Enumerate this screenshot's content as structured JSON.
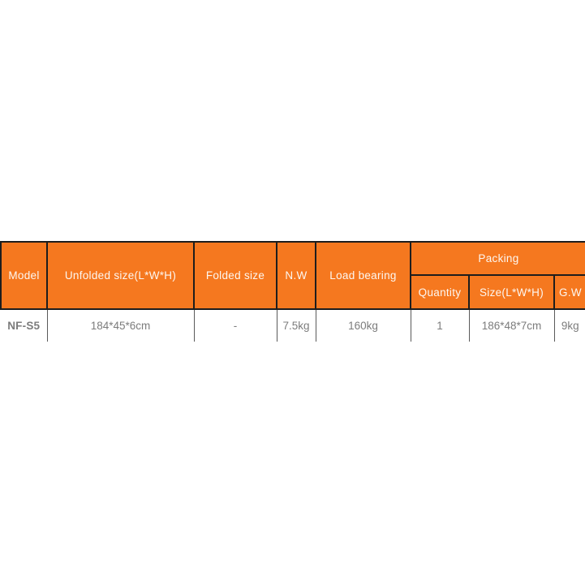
{
  "colors": {
    "header_bg": "#f5781f",
    "header_text": "#fdf7f1",
    "border_dark": "#1d1d1d",
    "border_light": "#5a5a5a",
    "value_text": "#7c7c7c",
    "model_text": "#3e3e3e",
    "page_bg": "#ffffff"
  },
  "table": {
    "header": {
      "model": "Model",
      "unfolded_size": "Unfolded size(L*W*H)",
      "folded_size": "Folded size",
      "net_weight": "N.W",
      "load_bearing": "Load bearing",
      "packing": "Packing",
      "packing_quantity": "Quantity",
      "packing_size": "Size(L*W*H)",
      "packing_gross_weight": "G.W"
    },
    "rows": [
      {
        "model": "NF-S5",
        "unfolded_size": "184*45*6cm",
        "folded_size": "-",
        "net_weight": "7.5kg",
        "load_bearing": "160kg",
        "packing_quantity": "1",
        "packing_size": "186*48*7cm",
        "packing_gross_weight": "9kg"
      }
    ]
  }
}
